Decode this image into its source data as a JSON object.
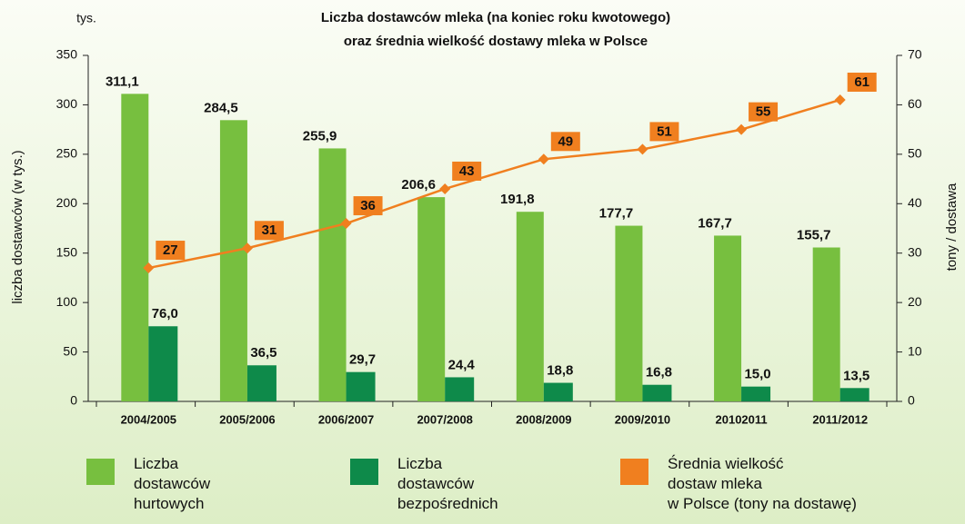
{
  "chart_data": {
    "type": "bar",
    "title": [
      "Liczba dostawców mleka (na koniec roku kwotowego)",
      "oraz średnia wielkość dostawy mleka w Polsce"
    ],
    "unit_label": "tys.",
    "ylabel": "liczba dostawców (w tys.)",
    "y2label": "tony / dostawa",
    "categories": [
      "2004/2005",
      "2005/2006",
      "2006/2007",
      "2007/2008",
      "2008/2009",
      "2009/2010",
      "20102011",
      "2011/2012"
    ],
    "series": [
      {
        "name": "Liczba\ndostawców\nhurtowych",
        "type": "bar",
        "color": "#77bf3f",
        "values": [
          311.1,
          284.5,
          255.9,
          206.6,
          191.8,
          177.7,
          167.7,
          155.7
        ],
        "value_labels": [
          "311,1",
          "284,5",
          "255,9",
          "206,6",
          "191,8",
          "177,7",
          "167,7",
          "155,7"
        ]
      },
      {
        "name": "Liczba\ndostawców\nbezpośrednich",
        "type": "bar",
        "color": "#0e8a4a",
        "values": [
          76.0,
          36.5,
          29.7,
          24.4,
          18.8,
          16.8,
          15.0,
          13.5
        ],
        "value_labels": [
          "76,0",
          "36,5",
          "29,7",
          "24,4",
          "18,8",
          "16,8",
          "15,0",
          "13,5"
        ]
      },
      {
        "name": "Średnia wielkość\ndostaw mleka\nw Polsce (tony na dostawę)",
        "type": "line",
        "axis": "y2",
        "color": "#f07f1f",
        "values": [
          27,
          31,
          36,
          43,
          49,
          51,
          55,
          61
        ]
      }
    ],
    "ylim": [
      0,
      350
    ],
    "yticks": [
      0,
      50,
      100,
      150,
      200,
      250,
      300,
      350
    ],
    "y2lim": [
      0,
      70
    ],
    "y2ticks": [
      0,
      10,
      20,
      30,
      40,
      50,
      60,
      70
    ]
  }
}
